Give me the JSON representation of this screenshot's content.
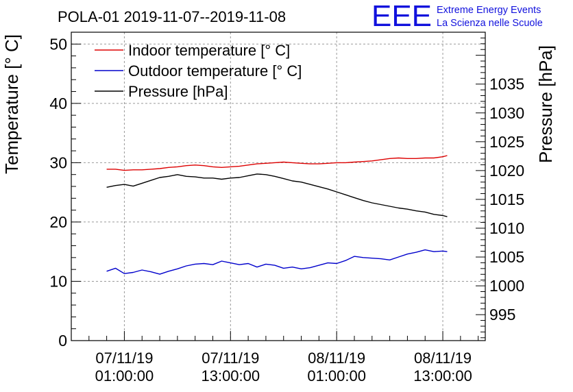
{
  "chart_data": {
    "type": "line",
    "title": "POLA-01 2019-11-07--2019-11-08",
    "logo": {
      "text": "EEE",
      "line1": "Extreme Energy Events",
      "line2": "La Scienza nelle Scuole",
      "color": "#1111dd"
    },
    "ylabel": "Temperature [° C]",
    "y2label": "Pressure [hPa]",
    "ylim": [
      0,
      52
    ],
    "y2lim": [
      990.5,
      1044
    ],
    "yticks": [
      "0",
      "10",
      "20",
      "30",
      "40",
      "50"
    ],
    "y2ticks": [
      "995",
      "1000",
      "1005",
      "1010",
      "1015",
      "1020",
      "1025",
      "1030",
      "1035"
    ],
    "xticks": [
      {
        "line1": "07/11/19",
        "line2": "01:00:00",
        "hour": 1
      },
      {
        "line1": "07/11/19",
        "line2": "13:00:00",
        "hour": 13
      },
      {
        "line1": "08/11/19",
        "line2": "01:00:00",
        "hour": 25
      },
      {
        "line1": "08/11/19",
        "line2": "13:00:00",
        "hour": 37
      }
    ],
    "xlim_hours": [
      -5.0,
      41.8
    ],
    "grid": true,
    "legend_position": "top-left",
    "x_hours": [
      -1.0,
      0.0,
      1.0,
      2.0,
      3.0,
      4.0,
      5.0,
      6.0,
      7.0,
      8.0,
      9.0,
      10.0,
      11.0,
      12.0,
      13.0,
      14.0,
      15.0,
      16.0,
      17.0,
      18.0,
      19.0,
      20.0,
      21.0,
      22.0,
      23.0,
      24.0,
      25.0,
      26.0,
      27.0,
      28.0,
      29.0,
      30.0,
      31.0,
      32.0,
      33.0,
      34.0,
      35.0,
      36.0,
      37.0,
      37.5
    ],
    "series": [
      {
        "name": "Indoor temperature [° C]",
        "axis": "left",
        "color": "#dd0000",
        "values": [
          28.9,
          28.9,
          28.7,
          28.8,
          28.8,
          28.9,
          29.0,
          29.2,
          29.3,
          29.5,
          29.6,
          29.5,
          29.3,
          29.2,
          29.3,
          29.4,
          29.6,
          29.8,
          29.9,
          30.0,
          30.1,
          30.0,
          29.9,
          29.8,
          29.8,
          29.9,
          30.0,
          30.0,
          30.1,
          30.2,
          30.3,
          30.5,
          30.7,
          30.8,
          30.7,
          30.7,
          30.8,
          30.8,
          31.0,
          31.2
        ]
      },
      {
        "name": "Outdoor temperature [° C]",
        "axis": "left",
        "color": "#0000cc",
        "values": [
          11.7,
          12.2,
          11.3,
          11.5,
          11.9,
          11.6,
          11.2,
          11.7,
          12.1,
          12.6,
          12.9,
          13.0,
          12.8,
          13.4,
          13.1,
          12.8,
          13.0,
          12.4,
          12.9,
          12.7,
          12.2,
          12.4,
          12.1,
          12.3,
          12.7,
          13.1,
          13.0,
          13.5,
          14.2,
          14.0,
          13.9,
          13.8,
          13.6,
          14.1,
          14.6,
          14.9,
          15.3,
          15.0,
          15.1,
          15.0
        ]
      },
      {
        "name": "Pressure [hPa]",
        "axis": "right",
        "color": "#000000",
        "values": [
          1017.1,
          1017.4,
          1017.6,
          1017.3,
          1017.8,
          1018.3,
          1018.8,
          1019.0,
          1019.3,
          1019.0,
          1018.9,
          1018.7,
          1018.7,
          1018.5,
          1018.7,
          1018.8,
          1019.1,
          1019.4,
          1019.3,
          1019.0,
          1018.6,
          1018.2,
          1018.0,
          1017.6,
          1017.2,
          1016.8,
          1016.3,
          1015.8,
          1015.3,
          1014.8,
          1014.4,
          1014.1,
          1013.8,
          1013.5,
          1013.3,
          1013.0,
          1012.8,
          1012.4,
          1012.2,
          1012.0
        ]
      }
    ]
  }
}
